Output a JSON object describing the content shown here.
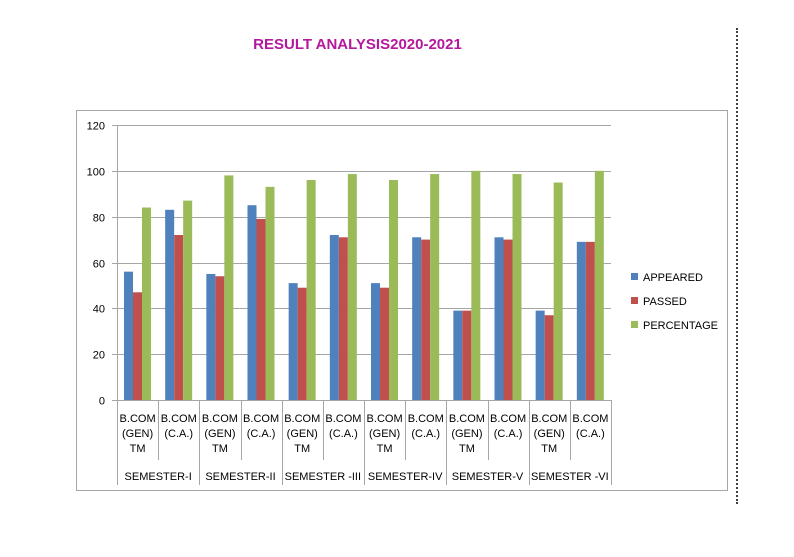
{
  "title": "RESULT ANALYSIS2020-2021",
  "colors": {
    "title": "#B5179E",
    "appeared": "#4F81BD",
    "passed": "#C0504D",
    "percentage": "#9BBB59",
    "grid": "#A6A6A6",
    "frame": "#A6A6A6",
    "text": "#000000"
  },
  "chart_data": {
    "type": "bar",
    "title": "RESULT ANALYSIS2020-2021",
    "xlabel": "",
    "ylabel": "",
    "ylim": [
      0,
      120
    ],
    "yticks": [
      "0",
      "20",
      "40",
      "60",
      "80",
      "100",
      "120"
    ],
    "grid": true,
    "legend_position": "right",
    "categories": [
      {
        "label": [
          "B.COM",
          "(GEN)",
          "TM"
        ]
      },
      {
        "label": [
          "B.COM",
          "(C.A.)"
        ]
      },
      {
        "label": [
          "B.COM",
          "(GEN)",
          "TM"
        ]
      },
      {
        "label": [
          "B.COM",
          "(C.A.)"
        ]
      },
      {
        "label": [
          "B.COM",
          "(GEN)",
          "TM"
        ]
      },
      {
        "label": [
          "B.COM",
          "(C.A.)"
        ]
      },
      {
        "label": [
          "B.COM",
          "(GEN)",
          "TM"
        ]
      },
      {
        "label": [
          "B.COM",
          "(C.A.)"
        ]
      },
      {
        "label": [
          "B.COM",
          "(GEN)",
          "TM"
        ]
      },
      {
        "label": [
          "B.COM",
          "(C.A.)"
        ]
      },
      {
        "label": [
          "B.COM",
          "(GEN)",
          "TM"
        ]
      },
      {
        "label": [
          "B.COM",
          "(C.A.)"
        ]
      }
    ],
    "groups": [
      "SEMESTER-I",
      "SEMESTER-II",
      "SEMESTER -III",
      "SEMESTER-IV",
      "SEMESTER-V",
      "SEMESTER -VI"
    ],
    "series": [
      {
        "name": "APPEARED",
        "values": [
          56,
          83,
          55,
          85,
          51,
          72,
          51,
          71,
          39,
          71,
          39,
          69
        ]
      },
      {
        "name": "PASSED",
        "values": [
          47,
          72,
          54,
          79,
          49,
          71,
          49,
          70,
          39,
          70,
          37,
          69
        ]
      },
      {
        "name": "PERCENTAGE",
        "values": [
          84,
          87,
          98,
          93,
          96,
          98.6,
          96,
          98.6,
          100,
          98.6,
          94.9,
          100
        ]
      }
    ]
  }
}
